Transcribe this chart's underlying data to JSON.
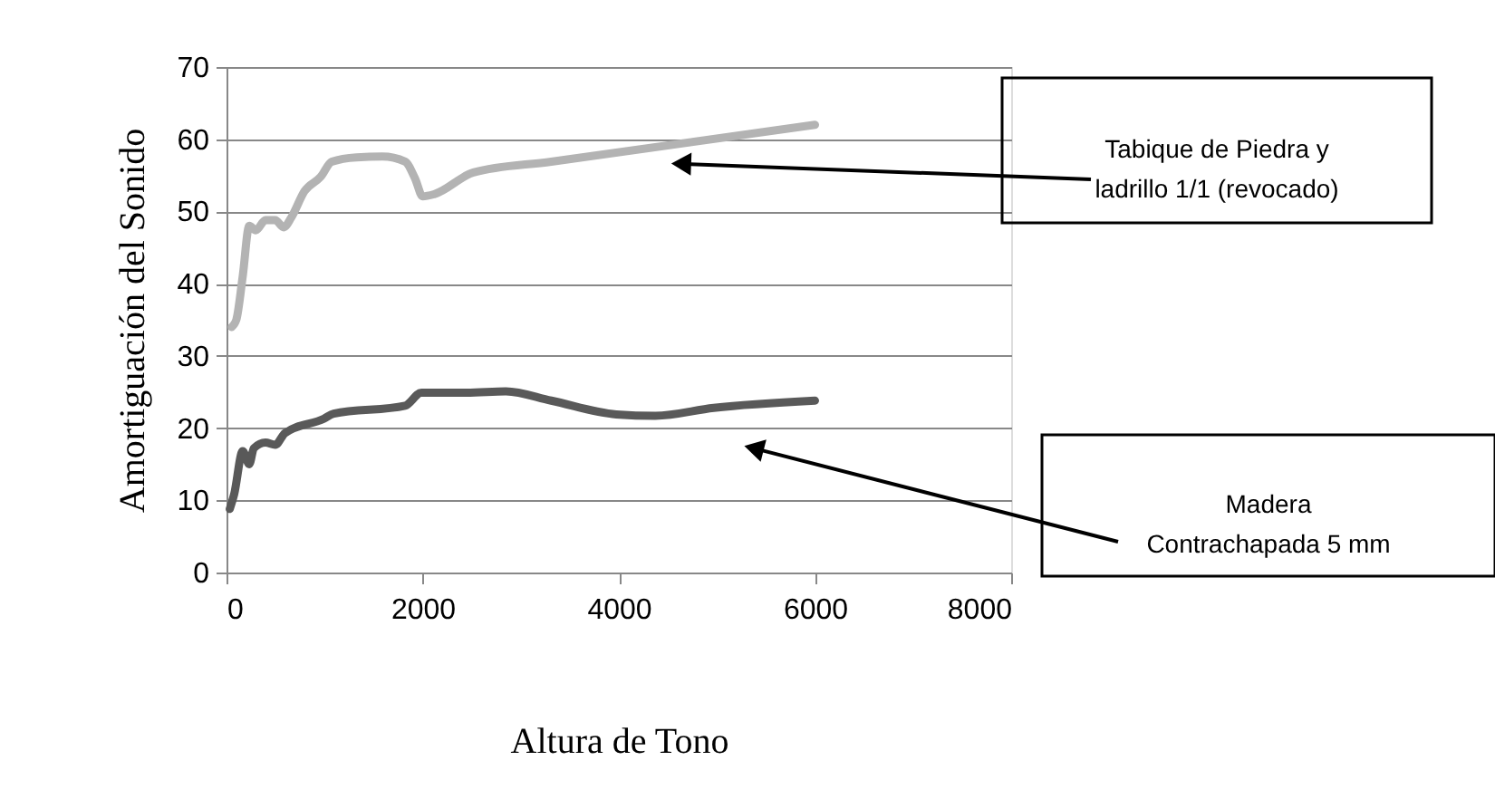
{
  "chart_data": {
    "type": "line",
    "xlabel": "Altura de  Tono",
    "ylabel": "Amortiguación del Sonido",
    "xlim": [
      0,
      8000
    ],
    "xticks": [
      0,
      2000,
      4000,
      6000,
      8000
    ],
    "ylim": [
      0,
      70
    ],
    "yticks": [
      0,
      10,
      20,
      30,
      40,
      50,
      60,
      70
    ],
    "grid": "y",
    "marker": "none",
    "line_style": "solid",
    "series": [
      {
        "color": "#b3b3b3",
        "x": [
          53,
          100,
          165,
          232,
          298,
          397,
          497,
          583,
          662,
          795,
          960,
          1073,
          1325,
          1589,
          1821,
          1921,
          2000,
          2119,
          2517,
          3311,
          6000
        ],
        "values": [
          34,
          35,
          41,
          48,
          47.4,
          48.8,
          48.8,
          47.8,
          49.2,
          52.8,
          54.8,
          56.9,
          57.5,
          57.6,
          56.9,
          54.6,
          52.1,
          52.4,
          55.4,
          56.9,
          62
        ]
      },
      {
        "color": "#595959",
        "x": [
          33,
          79,
          165,
          232,
          278,
          397,
          497,
          596,
          993,
          1093,
          1821,
          1987,
          2450,
          2848,
          3311,
          3974,
          4371,
          4967,
          6000
        ],
        "values": [
          8.8,
          10.9,
          16.8,
          15,
          17.2,
          18,
          17.7,
          19.3,
          21.3,
          22,
          23.1,
          24.9,
          24.9,
          25.1,
          23.8,
          21.9,
          21.7,
          22.8,
          23.8
        ]
      }
    ],
    "annotations": [
      {
        "text": "Tabique de Piedra y ladrillo 1/1 (revocado)",
        "x": 4636,
        "y": 56.6
      },
      {
        "text": "Madera Contrachapada 5 mm",
        "x": 5377,
        "y": 17.2
      }
    ]
  }
}
